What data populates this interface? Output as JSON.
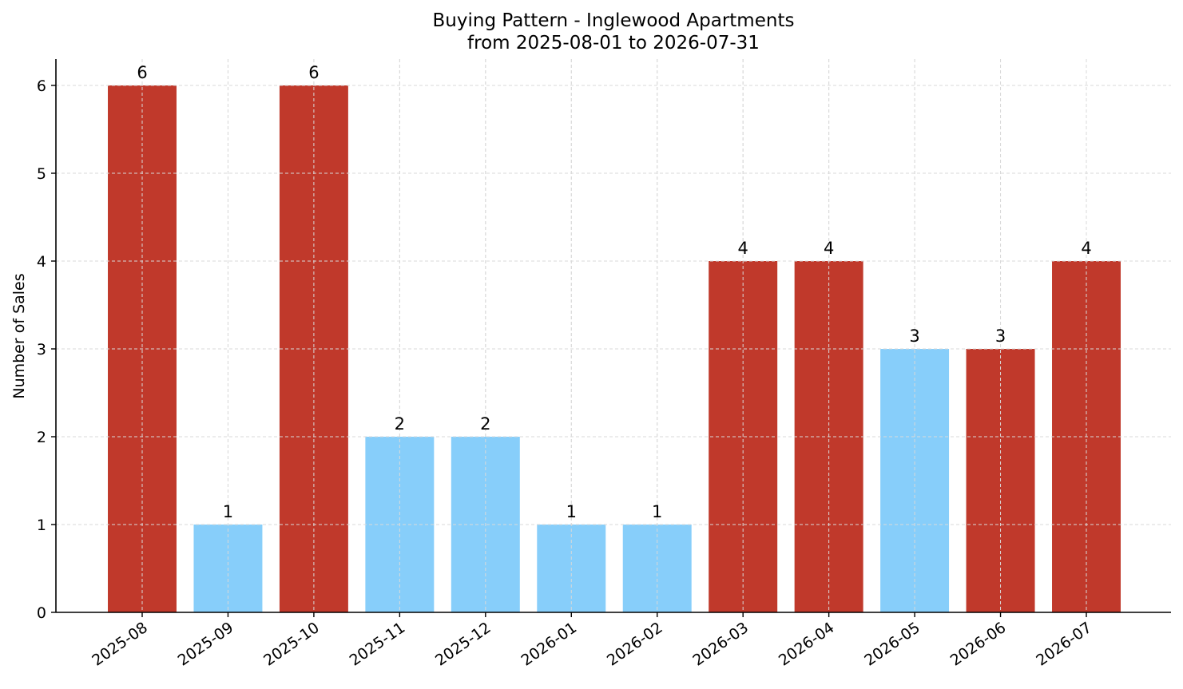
{
  "chart_data": {
    "type": "bar",
    "title": "Buying Pattern - Inglewood Apartments",
    "subtitle": "from 2025-08-01 to 2026-07-31",
    "xlabel": "",
    "ylabel": "Number of Sales",
    "ylim": [
      0,
      6.3
    ],
    "yticks": [
      0,
      1,
      2,
      3,
      4,
      5,
      6
    ],
    "grid": true,
    "categories": [
      "2025-08",
      "2025-09",
      "2025-10",
      "2025-11",
      "2025-12",
      "2026-01",
      "2026-02",
      "2026-03",
      "2026-04",
      "2026-05",
      "2026-06",
      "2026-07"
    ],
    "values": [
      6,
      1,
      6,
      2,
      2,
      1,
      1,
      4,
      4,
      3,
      3,
      4
    ],
    "bar_colors": [
      "#c0392b",
      "#87cefa",
      "#c0392b",
      "#87cefa",
      "#87cefa",
      "#87cefa",
      "#87cefa",
      "#c0392b",
      "#c0392b",
      "#87cefa",
      "#c0392b",
      "#c0392b"
    ]
  }
}
